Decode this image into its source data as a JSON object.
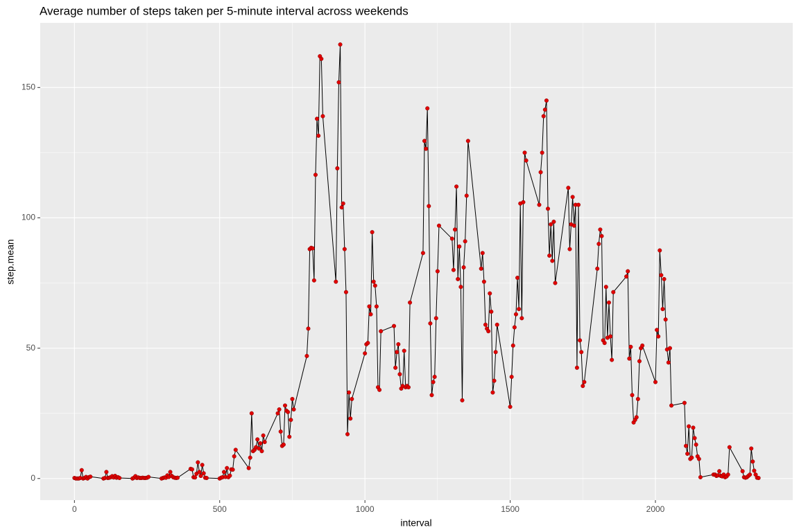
{
  "chart_data": {
    "type": "line",
    "title": "Average number of steps taken per 5-minute interval across weekends",
    "x_label": "interval",
    "y_label": "step.mean",
    "x": [
      0,
      5,
      10,
      15,
      20,
      25,
      30,
      35,
      40,
      45,
      50,
      55,
      100,
      105,
      110,
      115,
      120,
      125,
      130,
      135,
      140,
      145,
      150,
      155,
      200,
      205,
      210,
      215,
      220,
      225,
      230,
      235,
      240,
      245,
      250,
      255,
      300,
      305,
      310,
      315,
      320,
      325,
      330,
      335,
      340,
      345,
      350,
      355,
      400,
      405,
      410,
      415,
      420,
      425,
      430,
      435,
      440,
      445,
      450,
      455,
      500,
      505,
      510,
      515,
      520,
      525,
      530,
      535,
      540,
      545,
      550,
      555,
      600,
      605,
      610,
      615,
      620,
      625,
      630,
      635,
      640,
      645,
      650,
      655,
      700,
      705,
      710,
      715,
      720,
      725,
      730,
      735,
      740,
      745,
      750,
      755,
      800,
      805,
      810,
      815,
      820,
      825,
      830,
      835,
      840,
      845,
      850,
      855,
      900,
      905,
      910,
      915,
      920,
      925,
      930,
      935,
      940,
      945,
      950,
      955,
      1000,
      1005,
      1010,
      1015,
      1020,
      1025,
      1030,
      1035,
      1040,
      1045,
      1050,
      1055,
      1100,
      1105,
      1110,
      1115,
      1120,
      1125,
      1130,
      1135,
      1140,
      1145,
      1150,
      1155,
      1200,
      1205,
      1210,
      1215,
      1220,
      1225,
      1230,
      1235,
      1240,
      1245,
      1250,
      1255,
      1300,
      1305,
      1310,
      1315,
      1320,
      1325,
      1330,
      1335,
      1340,
      1345,
      1350,
      1355,
      1400,
      1405,
      1410,
      1415,
      1420,
      1425,
      1430,
      1435,
      1440,
      1445,
      1450,
      1455,
      1500,
      1505,
      1510,
      1515,
      1520,
      1525,
      1530,
      1535,
      1540,
      1545,
      1550,
      1555,
      1600,
      1605,
      1610,
      1615,
      1620,
      1625,
      1630,
      1635,
      1640,
      1645,
      1650,
      1655,
      1700,
      1705,
      1710,
      1715,
      1720,
      1725,
      1730,
      1735,
      1740,
      1745,
      1750,
      1755,
      1800,
      1805,
      1810,
      1815,
      1820,
      1825,
      1830,
      1835,
      1840,
      1845,
      1850,
      1855,
      1900,
      1905,
      1910,
      1915,
      1920,
      1925,
      1930,
      1935,
      1940,
      1945,
      1950,
      1955,
      2000,
      2005,
      2010,
      2015,
      2020,
      2025,
      2030,
      2035,
      2040,
      2045,
      2050,
      2055,
      2100,
      2105,
      2110,
      2115,
      2120,
      2125,
      2130,
      2135,
      2140,
      2145,
      2150,
      2155,
      2200,
      2205,
      2210,
      2215,
      2220,
      2225,
      2230,
      2235,
      2240,
      2245,
      2250,
      2255,
      2300,
      2305,
      2310,
      2315,
      2320,
      2325,
      2330,
      2335,
      2340,
      2345,
      2350,
      2355
    ],
    "values": [
      0.2,
      0,
      0,
      0,
      0.2,
      3.2,
      0,
      0.2,
      0.6,
      0,
      0.5,
      0.7,
      0,
      0.2,
      2.5,
      0.2,
      0.3,
      0.5,
      0.9,
      0.4,
      1,
      0.3,
      0.5,
      0.2,
      0,
      0.3,
      0.9,
      0.2,
      0.4,
      0.2,
      0.2,
      0.3,
      0.2,
      0.2,
      0.3,
      0.6,
      0,
      0.2,
      0.4,
      0.3,
      1.2,
      0.6,
      2.5,
      1,
      0.5,
      0.3,
      0.2,
      0.3,
      3.7,
      3.5,
      0.5,
      0.4,
      1.8,
      6.2,
      2.5,
      1,
      5.2,
      2,
      0.3,
      0.2,
      0,
      0.3,
      0.5,
      2.5,
      0.6,
      4,
      0.5,
      1.1,
      3.5,
      3.4,
      8.5,
      11,
      4,
      8,
      25,
      10.5,
      11,
      12,
      15,
      11.5,
      13.5,
      10.5,
      16.5,
      14,
      25,
      26.5,
      18,
      12.5,
      13,
      28,
      26,
      25.5,
      16,
      22.5,
      30.5,
      26.5,
      47,
      57.5,
      88,
      88.5,
      88.3,
      76,
      116.5,
      138,
      131.5,
      162,
      161,
      139,
      75.5,
      119,
      152,
      166.5,
      104,
      105.5,
      88,
      71.5,
      17,
      33,
      23,
      30.5,
      48,
      51.5,
      52,
      66,
      63,
      94.5,
      75.5,
      74,
      66,
      35,
      34,
      56.5,
      58.5,
      42.5,
      48.5,
      51.5,
      40,
      34.5,
      35.5,
      49,
      35,
      35.5,
      35,
      67.5,
      86.5,
      129.5,
      126.5,
      142,
      104.5,
      59.5,
      32,
      37,
      39,
      61.5,
      79.5,
      97,
      92,
      80,
      95.5,
      112,
      76.5,
      89,
      73.5,
      30,
      81,
      91,
      108.5,
      129.5,
      80.5,
      86.5,
      75.5,
      59,
      57.5,
      56.5,
      71,
      64,
      33,
      37.5,
      48.5,
      59,
      27.5,
      39,
      51,
      58,
      63,
      77,
      65,
      105.5,
      61.5,
      106,
      125,
      122,
      105,
      117.5,
      125,
      139,
      141.5,
      145,
      103.5,
      85.5,
      97.5,
      83.5,
      98.5,
      75,
      111.5,
      88,
      97.5,
      108,
      97,
      105,
      42.5,
      105,
      53,
      48.5,
      35.5,
      37,
      80.5,
      90,
      95.5,
      93,
      53,
      52,
      73.5,
      54,
      67.5,
      54.5,
      45.5,
      71.5,
      77.5,
      79.5,
      46,
      50.5,
      32,
      21.5,
      22.5,
      23.5,
      30.5,
      45,
      50,
      51,
      37,
      57,
      54.5,
      87.5,
      78,
      65,
      76.5,
      61,
      49.5,
      44.5,
      50,
      28,
      29,
      12.5,
      9.5,
      20,
      7.5,
      8,
      19.5,
      15.5,
      13,
      8.5,
      7.5,
      0.5,
      1.5,
      1.5,
      1,
      1.2,
      2.8,
      1,
      0.8,
      1.5,
      0.5,
      0.8,
      1.5,
      12,
      2.8,
      0.5,
      0.3,
      0.5,
      1,
      1.5,
      11.5,
      6.5,
      3,
      1.5,
      0.3,
      0.2
    ],
    "line_color": "#000000",
    "point_color": "#e00000",
    "xlim": [
      -117.75,
      2472.75
    ],
    "ylim": [
      -8.3,
      174.8
    ],
    "xticks": [
      0,
      500,
      1000,
      1500,
      2000
    ],
    "yticks": [
      0,
      50,
      100,
      150
    ],
    "grid": true
  }
}
